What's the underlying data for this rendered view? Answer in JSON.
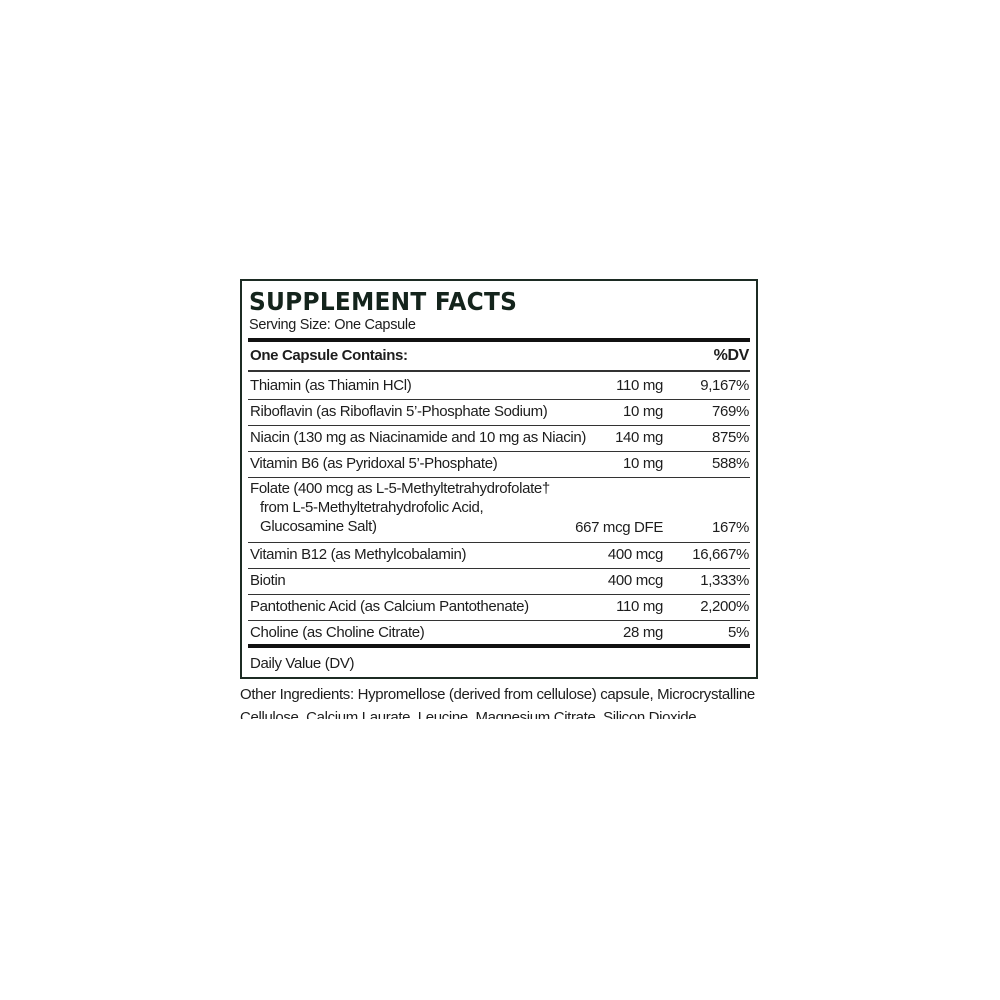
{
  "title": "SUPPLEMENT FACTS",
  "serving_size": "Serving Size: One Capsule",
  "header": {
    "contains": "One Capsule Contains:",
    "dv": "%DV"
  },
  "rows": [
    {
      "name": "Thiamin (as Thiamin HCl)",
      "amount": "110 mg",
      "dv": "9,167%"
    },
    {
      "name": "Riboflavin (as Riboflavin 5’-Phosphate Sodium)",
      "amount": "10 mg",
      "dv": "769%"
    },
    {
      "name": "Niacin (130 mg as Niacinamide and 10 mg as Niacin)",
      "amount": "140 mg",
      "dv": "875%"
    },
    {
      "name": "Vitamin B6 (as Pyridoxal 5’-Phosphate)",
      "amount": "10 mg",
      "dv": "588%"
    },
    {
      "name": "Folate (400 mcg as L-5-Methyltetrahydrofolate†",
      "name_line2": "from L-5-Methyltetrahydrofolic Acid,",
      "name_line3": "Glucosamine Salt)",
      "amount": "667 mcg DFE",
      "dv": "167%"
    },
    {
      "name": "Vitamin B12 (as Methylcobalamin)",
      "amount": "400 mcg",
      "dv": "16,667%"
    },
    {
      "name": "Biotin",
      "amount": "400 mcg",
      "dv": "1,333%"
    },
    {
      "name": "Pantothenic Acid (as Calcium Pantothenate)",
      "amount": "110 mg",
      "dv": "2,200%"
    },
    {
      "name": "Choline (as Choline Citrate)",
      "amount": "28 mg",
      "dv": "5%"
    }
  ],
  "footnote": "Daily Value (DV)",
  "other_ingredients": "Other Ingredients: Hypromellose (derived from cellulose) capsule, Microcrystalline Cellulose, Calcium Laurate, Leucine, Magnesium Citrate, Silicon Dioxide.",
  "colors": {
    "border": "#1c2b23",
    "title": "#14241c"
  }
}
